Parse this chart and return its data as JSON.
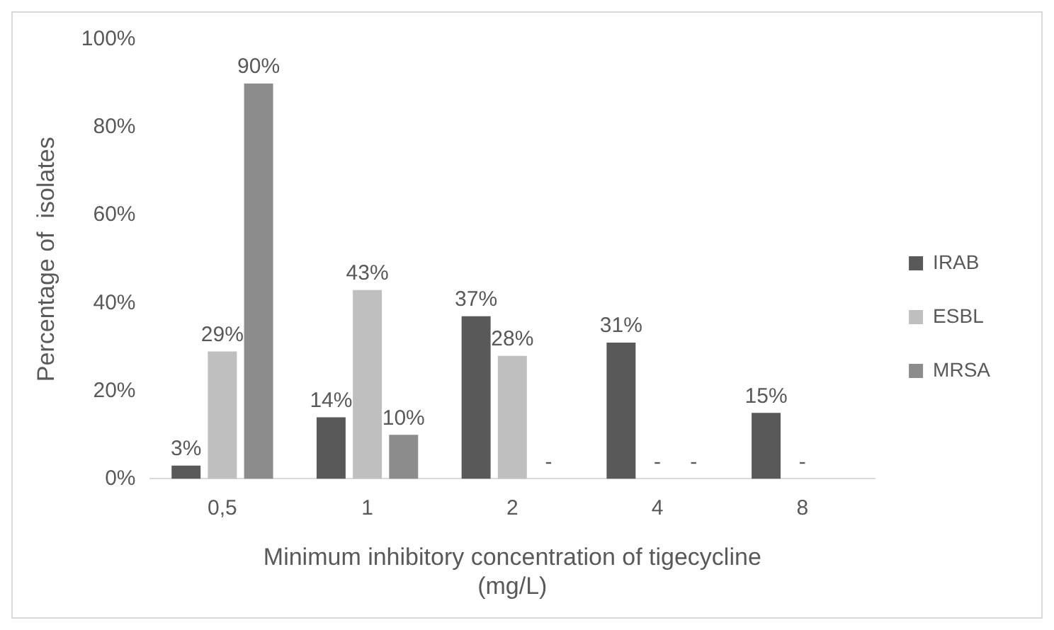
{
  "chart_data": {
    "type": "bar",
    "xlabel": "Minimum inhibitory concentration of tigecycline\n(mg/L)",
    "ylabel": "Percentage of  isolates",
    "categories": [
      "0,5",
      "1",
      "2",
      "4",
      "8"
    ],
    "series": [
      {
        "name": "IRAB",
        "color": "#595959",
        "values": [
          3,
          14,
          37,
          31,
          15
        ],
        "value_labels": [
          "3%",
          "14%",
          "37%",
          "31%",
          "15%"
        ]
      },
      {
        "name": "ESBL",
        "color": "#bfbfbf",
        "values": [
          29,
          43,
          28,
          null,
          null
        ],
        "value_labels": [
          "29%",
          "43%",
          "28%",
          "-",
          "-"
        ]
      },
      {
        "name": "MRSA",
        "color": "#8c8c8c",
        "values": [
          90,
          10,
          null,
          null,
          null
        ],
        "value_labels": [
          "90%",
          "10%",
          "-",
          "-",
          null
        ]
      }
    ],
    "ylim": [
      0,
      100
    ],
    "yticks": [
      {
        "value": 0,
        "label": "0%"
      },
      {
        "value": 20,
        "label": "20%"
      },
      {
        "value": 40,
        "label": "40%"
      },
      {
        "value": 60,
        "label": "60%"
      },
      {
        "value": 80,
        "label": "80%"
      },
      {
        "value": 100,
        "label": "100%"
      }
    ],
    "grid": false,
    "legend": "right"
  }
}
